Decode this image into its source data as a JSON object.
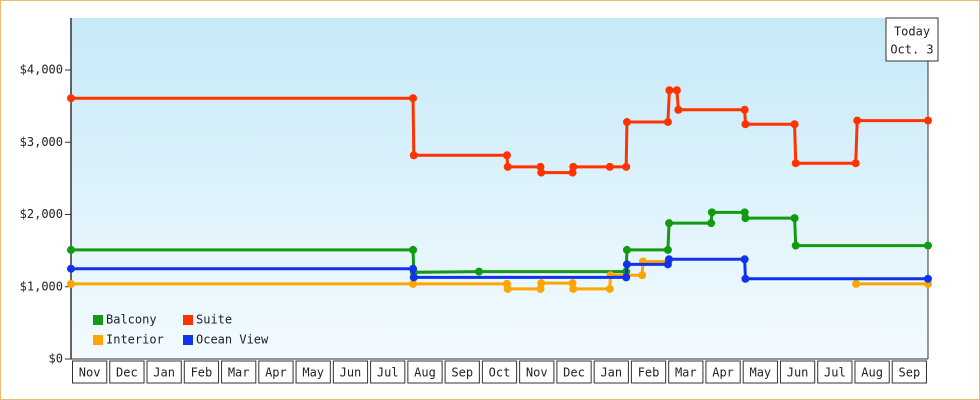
{
  "chart_data": {
    "type": "line",
    "step_dots": true,
    "categories": [
      "Nov",
      "Dec",
      "Jan",
      "Feb",
      "Mar",
      "Apr",
      "May",
      "Jun",
      "Jul",
      "Aug",
      "Sep",
      "Oct",
      "Nov",
      "Dec",
      "Jan",
      "Feb",
      "Mar",
      "Apr",
      "May",
      "Jun",
      "Jul",
      "Aug",
      "Sep"
    ],
    "xlim": [
      0,
      23
    ],
    "ylim": [
      0,
      4720
    ],
    "yticks": [
      {
        "value": 0,
        "label": "$0"
      },
      {
        "value": 1000,
        "label": "$1,000"
      },
      {
        "value": 2000,
        "label": "$2,000"
      },
      {
        "value": 3000,
        "label": "$3,000"
      },
      {
        "value": 4000,
        "label": "$4,000"
      }
    ],
    "legend": "bottom-left",
    "annotation": {
      "lines": [
        "Today",
        "Oct. 3"
      ],
      "x": 23
    },
    "series": [
      {
        "name": "Balcony",
        "color": "#129a12",
        "x": [
          0,
          9.18,
          9.2,
          10.95,
          14.9,
          14.92,
          16.02,
          16.05,
          17.18,
          17.2,
          18.08,
          18.1,
          19.42,
          19.45,
          23
        ],
        "values": [
          1510,
          1510,
          1200,
          1210,
          1210,
          1510,
          1510,
          1880,
          1880,
          2030,
          2030,
          1950,
          1950,
          1570,
          1570
        ]
      },
      {
        "name": "Suite",
        "color": "#ff3300",
        "x": [
          0,
          9.18,
          9.2,
          11.7,
          11.72,
          12.6,
          12.62,
          13.46,
          13.48,
          14.46,
          14.9,
          14.92,
          16.02,
          16.06,
          16.26,
          16.3,
          18.08,
          18.1,
          19.42,
          19.45,
          21.06,
          21.1,
          23
        ],
        "values": [
          3610,
          3610,
          2820,
          2820,
          2660,
          2660,
          2580,
          2580,
          2660,
          2660,
          2660,
          3280,
          3280,
          3720,
          3720,
          3450,
          3450,
          3250,
          3250,
          2710,
          2710,
          3300,
          3300
        ]
      },
      {
        "name": "Interior",
        "color": "#ffa500",
        "x": [
          0,
          9.18,
          11.7,
          11.72,
          12.6,
          12.62,
          13.46,
          13.48,
          14.46,
          14.48,
          15.33,
          15.35,
          16.02,
          18.5,
          21.07,
          23
        ],
        "values": [
          1040,
          1040,
          1040,
          970,
          970,
          1050,
          1050,
          970,
          970,
          1160,
          1160,
          1350,
          1350,
          null,
          1040,
          1040
        ]
      },
      {
        "name": "Ocean View",
        "color": "#1133ee",
        "x": [
          0,
          9.18,
          9.2,
          14.9,
          14.92,
          16.02,
          16.05,
          18.08,
          18.1,
          23
        ],
        "values": [
          1250,
          1250,
          1130,
          1130,
          1310,
          1310,
          1380,
          1380,
          1110,
          1110
        ]
      }
    ]
  }
}
